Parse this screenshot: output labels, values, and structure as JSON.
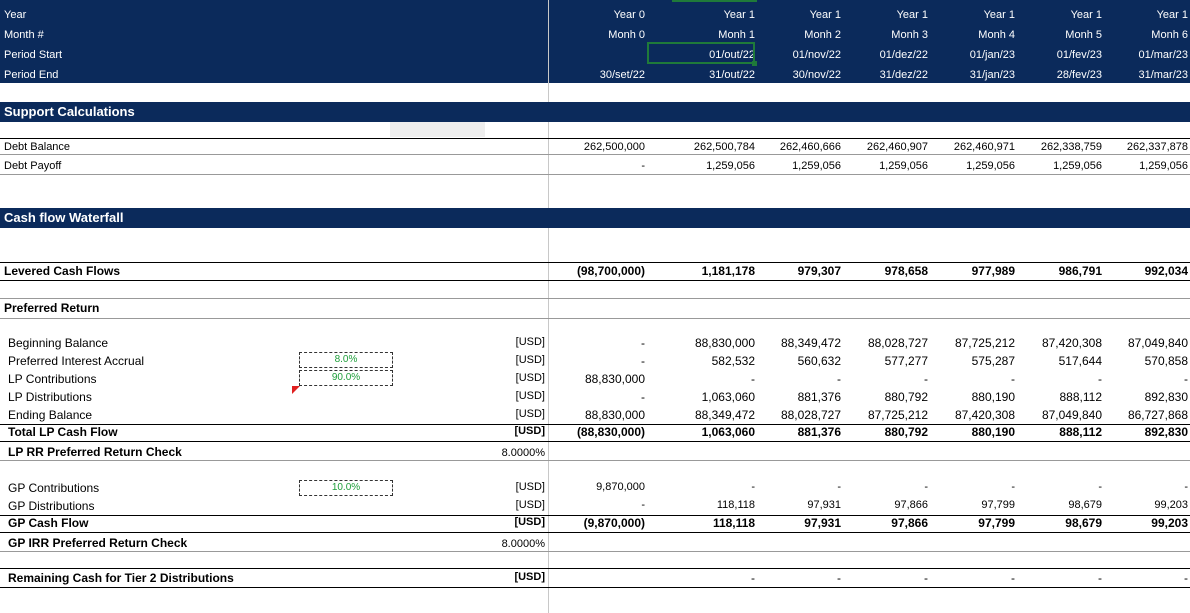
{
  "header": {
    "labels": [
      "Year",
      "Month #",
      "Period Start",
      "Period End"
    ],
    "columns": [
      {
        "year": "Year 0",
        "month": "Monh 0",
        "start": "",
        "end": "30/set/22"
      },
      {
        "year": "Year 1",
        "month": "Monh 1",
        "start": "01/out/22",
        "end": "31/out/22"
      },
      {
        "year": "Year 1",
        "month": "Monh 2",
        "start": "01/nov/22",
        "end": "30/nov/22"
      },
      {
        "year": "Year 1",
        "month": "Monh 3",
        "start": "01/dez/22",
        "end": "31/dez/22"
      },
      {
        "year": "Year 1",
        "month": "Monh 4",
        "start": "01/jan/23",
        "end": "31/jan/23"
      },
      {
        "year": "Year 1",
        "month": "Monh 5",
        "start": "01/fev/23",
        "end": "28/fev/23"
      },
      {
        "year": "Year 1",
        "month": "Monh 6",
        "start": "01/mar/23",
        "end": "31/mar/23"
      }
    ]
  },
  "sections": {
    "support": "Support Calculations",
    "waterfall": "Cash flow Waterfall"
  },
  "support": {
    "debt_balance": {
      "label": "Debt Balance",
      "values": [
        "262,500,000",
        "262,500,784",
        "262,460,666",
        "262,460,907",
        "262,460,971",
        "262,338,759",
        "262,337,878"
      ]
    },
    "debt_payoff": {
      "label": "Debt Payoff",
      "values": [
        "-",
        "1,259,056",
        "1,259,056",
        "1,259,056",
        "1,259,056",
        "1,259,056",
        "1,259,056"
      ]
    }
  },
  "levered": {
    "label": "Levered Cash Flows",
    "values": [
      "(98,700,000)",
      "1,181,178",
      "979,307",
      "978,658",
      "977,989",
      "986,791",
      "992,034"
    ]
  },
  "preferred": {
    "title": "Preferred Return",
    "inputs": {
      "rate": "8.0%",
      "lp_share": "90.0%",
      "gp_share": "10.0%"
    },
    "rows": [
      {
        "label": "Beginning Balance",
        "unit": "[USD]",
        "values": [
          "-",
          "88,830,000",
          "88,349,472",
          "88,028,727",
          "87,725,212",
          "87,420,308",
          "87,049,840"
        ]
      },
      {
        "label": "Preferred Interest Accrual",
        "unit": "[USD]",
        "values": [
          "-",
          "582,532",
          "560,632",
          "577,277",
          "575,287",
          "517,644",
          "570,858"
        ]
      },
      {
        "label": "LP Contributions",
        "unit": "[USD]",
        "values": [
          "88,830,000",
          "-",
          "-",
          "-",
          "-",
          "-",
          "-"
        ]
      },
      {
        "label": "LP Distributions",
        "unit": "[USD]",
        "values": [
          "-",
          "1,063,060",
          "881,376",
          "880,792",
          "880,190",
          "888,112",
          "892,830"
        ]
      },
      {
        "label": "Ending Balance",
        "unit": "[USD]",
        "values": [
          "88,830,000",
          "88,349,472",
          "88,028,727",
          "87,725,212",
          "87,420,308",
          "87,049,840",
          "86,727,868"
        ]
      }
    ],
    "total_lp": {
      "label": "Total LP Cash Flow",
      "unit": "[USD]",
      "values": [
        "(88,830,000)",
        "1,063,060",
        "881,376",
        "880,792",
        "880,190",
        "888,112",
        "892,830"
      ]
    },
    "lp_check": {
      "label": "LP RR Preferred Return Check",
      "value": "8.0000%"
    },
    "gp_rows": [
      {
        "label": "GP Contributions",
        "unit": "[USD]",
        "values": [
          "9,870,000",
          "-",
          "-",
          "-",
          "-",
          "-",
          "-"
        ]
      },
      {
        "label": "GP Distributions",
        "unit": "[USD]",
        "values": [
          "-",
          "118,118",
          "97,931",
          "97,866",
          "97,799",
          "98,679",
          "99,203"
        ]
      }
    ],
    "gp_total": {
      "label": "GP Cash Flow",
      "unit": "[USD]",
      "values": [
        "(9,870,000)",
        "118,118",
        "97,931",
        "97,866",
        "97,799",
        "98,679",
        "99,203"
      ]
    },
    "gp_check": {
      "label": "GP IRR Preferred Return Check",
      "value": "8.0000%"
    },
    "remaining": {
      "label": "Remaining Cash for Tier 2 Distributions",
      "unit": "[USD]",
      "values": [
        "",
        "-",
        "-",
        "-",
        "-",
        "-",
        "-"
      ]
    }
  },
  "colors": {
    "navy": "#0b2a5b",
    "input_green": "#1e9e3a",
    "selection": "#1f7a3a"
  }
}
